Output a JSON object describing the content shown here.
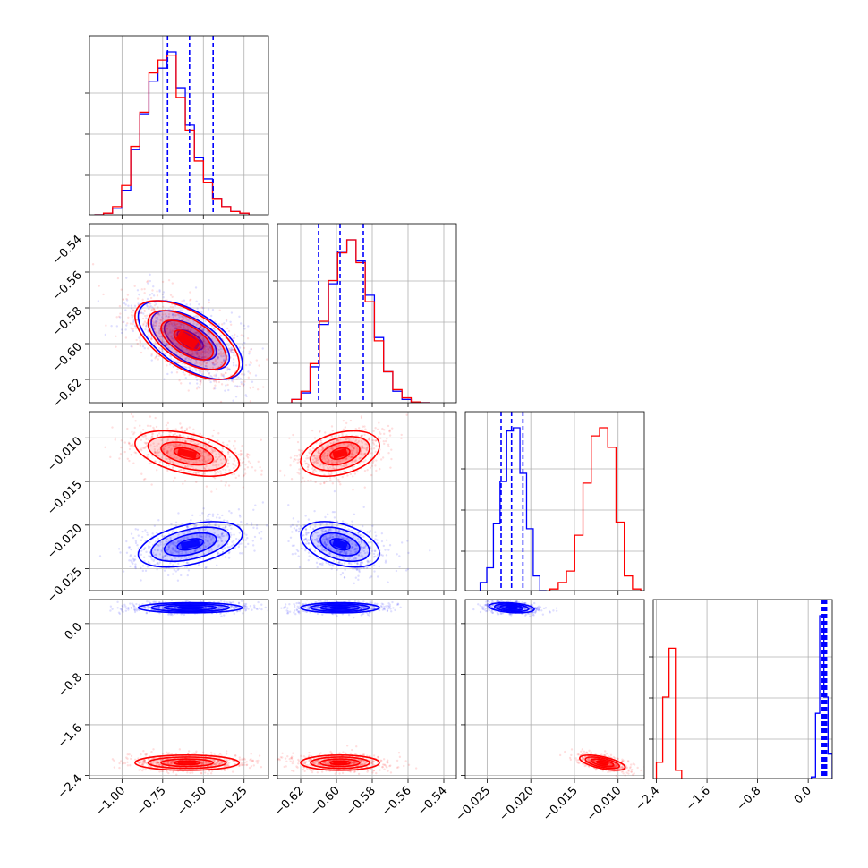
{
  "chart_data": {
    "type": "corner",
    "grid": true,
    "colors": {
      "series_a": "#0000ff",
      "series_b": "#ff0000"
    },
    "parameters": [
      {
        "xlim": [
          -1.2,
          -0.1
        ],
        "ticks": [
          -1.0,
          -0.75,
          -0.5,
          -0.25
        ],
        "tick_labels": [
          "−1.00",
          "−0.75",
          "−0.50",
          "−0.25"
        ]
      },
      {
        "xlim": [
          -0.633,
          -0.533
        ],
        "ticks": [
          -0.62,
          -0.6,
          -0.58,
          -0.56,
          -0.54
        ],
        "tick_labels": [
          "−0.62",
          "−0.60",
          "−0.58",
          "−0.56",
          "−0.54"
        ]
      },
      {
        "xlim": [
          -0.0275,
          -0.007
        ],
        "ticks": [
          -0.025,
          -0.02,
          -0.015,
          -0.01
        ],
        "tick_labels": [
          "−0.025",
          "−0.020",
          "−0.015",
          "−0.010"
        ]
      },
      {
        "xlim": [
          -2.45,
          0.38
        ],
        "ticks": [
          -2.4,
          -1.6,
          -0.8,
          0.0
        ],
        "tick_labels": [
          "−2.4",
          "−1.6",
          "−0.8",
          "0.0"
        ]
      }
    ],
    "series": [
      {
        "color": "#0000ff",
        "means": [
          -0.58,
          -0.598,
          -0.0222,
          0.25
        ],
        "stds": [
          0.16,
          0.011,
          0.0013,
          0.04
        ],
        "rhos": [
          [
            1,
            -0.6,
            0.45,
            0
          ],
          [
            -0.6,
            1,
            -0.4,
            0
          ],
          [
            0.45,
            -0.4,
            1,
            -0.3
          ],
          [
            0,
            0,
            -0.3,
            1
          ]
        ],
        "quantiles": [
          [
            -0.72,
            -0.585,
            -0.44
          ],
          [
            -0.61,
            -0.598,
            -0.585
          ],
          [
            -0.0234,
            -0.0222,
            -0.0209
          ],
          [
            0.21,
            0.25,
            0.29
          ]
        ],
        "hists": [
          [
            0,
            0.01,
            0.04,
            0.15,
            0.4,
            0.62,
            0.82,
            0.9,
            1.0,
            0.78,
            0.55,
            0.35,
            0.22,
            0.1,
            0.05,
            0.02,
            0.01
          ],
          [
            0.02,
            0.06,
            0.22,
            0.48,
            0.73,
            0.93,
            1.0,
            0.87,
            0.66,
            0.4,
            0.19,
            0.07,
            0.02,
            0.005,
            0
          ],
          [
            0.05,
            0.14,
            0.41,
            0.67,
            0.98,
            1.0,
            0.72,
            0.38,
            0.09,
            0
          ],
          [
            0.01,
            0.4,
            1.0,
            0.5,
            0.15
          ]
        ],
        "hist_ranges": [
          [
            -1.17,
            -0.22
          ],
          [
            -0.625,
            -0.548
          ],
          [
            -0.0258,
            -0.0182
          ],
          [
            0.05,
            0.38
          ]
        ]
      },
      {
        "color": "#ff0000",
        "means": [
          -0.6,
          -0.598,
          -0.0118,
          -2.2
        ],
        "stds": [
          0.16,
          0.011,
          0.0013,
          0.06
        ],
        "rhos": [
          [
            1,
            -0.6,
            -0.45,
            0
          ],
          [
            -0.6,
            1,
            0.35,
            0
          ],
          [
            -0.45,
            0.35,
            1,
            -0.6
          ],
          [
            0,
            0,
            -0.6,
            1
          ]
        ],
        "quantiles": [
          [
            -0.72,
            -0.585,
            -0.44
          ],
          [
            -0.61,
            -0.598,
            -0.585
          ],
          [
            -0.0234,
            -0.0222,
            -0.0209
          ],
          [
            0.21,
            0.25,
            0.29
          ]
        ],
        "hists": [
          [
            0,
            0.01,
            0.05,
            0.18,
            0.42,
            0.63,
            0.87,
            0.95,
            0.98,
            0.72,
            0.52,
            0.33,
            0.2,
            0.1,
            0.05,
            0.02,
            0.01
          ],
          [
            0.02,
            0.07,
            0.24,
            0.5,
            0.75,
            0.92,
            1.0,
            0.86,
            0.62,
            0.38,
            0.19,
            0.08,
            0.03,
            0.005,
            0
          ],
          [
            0.01,
            0.05,
            0.12,
            0.34,
            0.66,
            0.95,
            1.0,
            0.88,
            0.42,
            0.09,
            0.01
          ],
          [
            0.1,
            0.5,
            0.8,
            0.05
          ]
        ],
        "hist_ranges": [
          [
            -1.17,
            -0.22
          ],
          [
            -0.625,
            -0.548
          ],
          [
            -0.0178,
            -0.0074
          ],
          [
            -2.4,
            -2.0
          ]
        ]
      }
    ]
  }
}
